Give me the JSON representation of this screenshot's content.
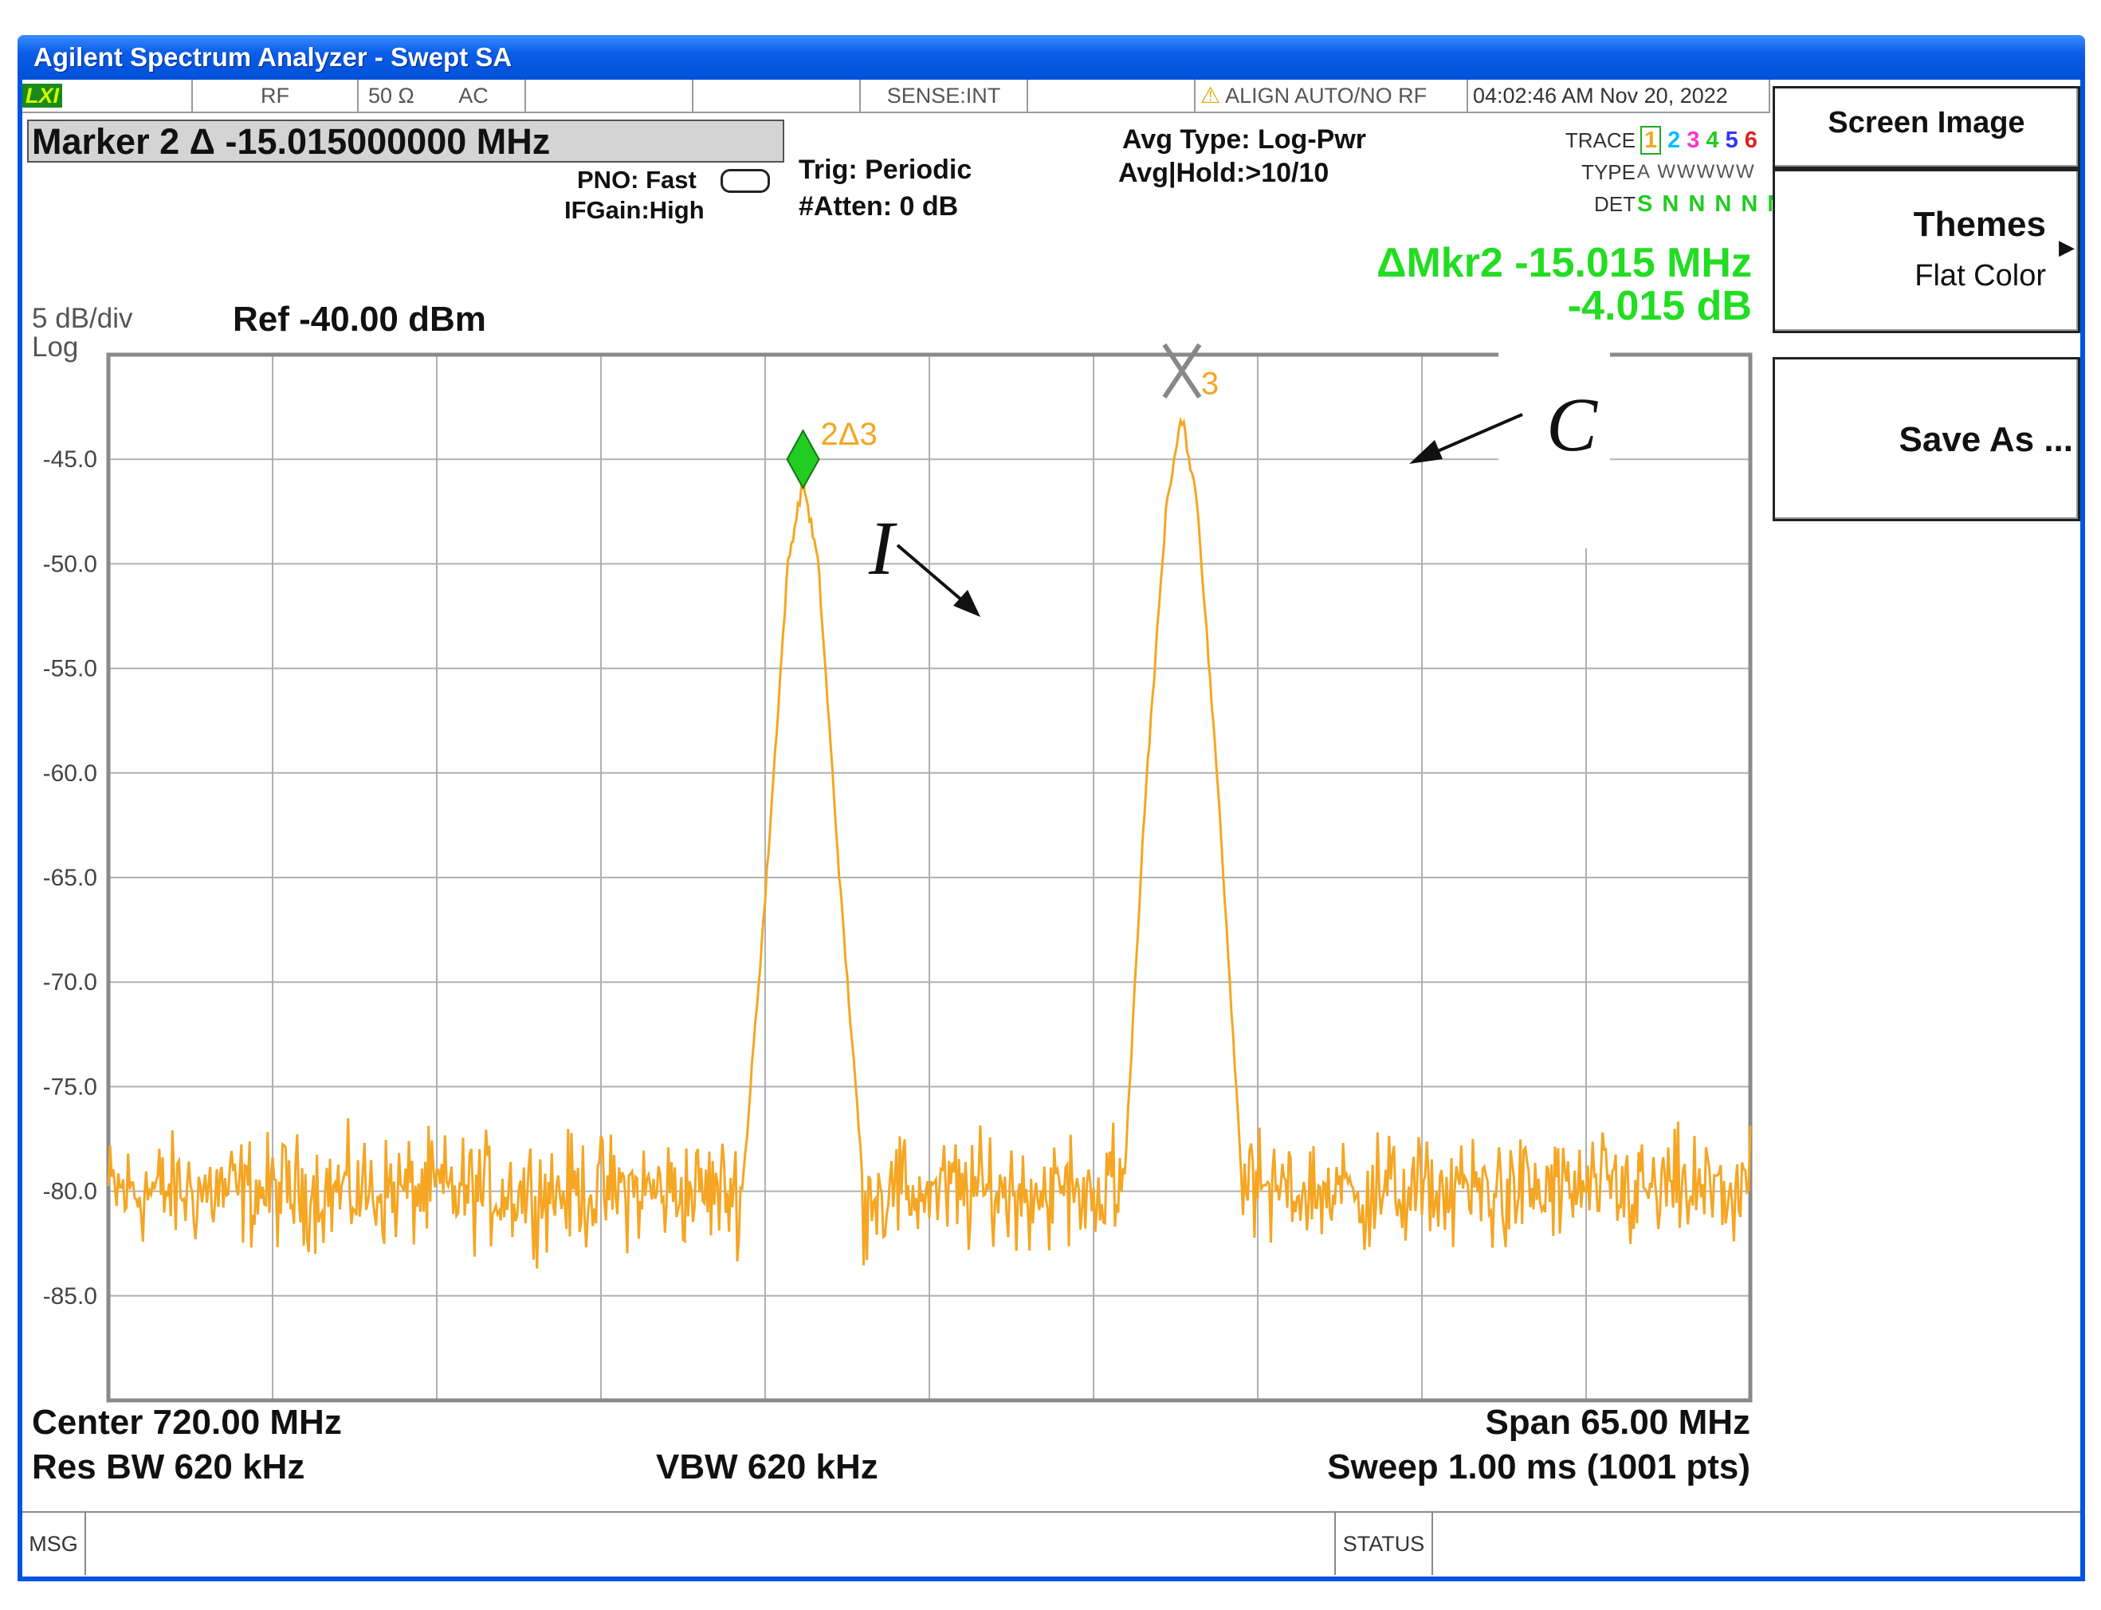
{
  "window": {
    "title": "Agilent Spectrum Analyzer - Swept SA"
  },
  "status_bar": {
    "lxi": "LXI",
    "rf": "RF",
    "impedance": "50 Ω",
    "coupling": "AC",
    "sense": "SENSE:INT",
    "align": "ALIGN AUTO/NO RF",
    "time": "04:02:46 AM",
    "date": "Nov 20, 2022"
  },
  "header": {
    "marker_readout": "Marker 2 Δ  -15.015000000 MHz",
    "pno": "PNO: Fast",
    "ifgain": "IFGain:High",
    "trig": "Trig: Periodic",
    "atten": "#Atten: 0 dB",
    "avg_type": "Avg Type: Log-Pwr",
    "avg_hold": "Avg|Hold:>10/10",
    "trace_label": "TRACE",
    "type_label": "TYPE",
    "det_label": "DET",
    "trace_numbers": [
      "1",
      "2",
      "3",
      "4",
      "5",
      "6"
    ],
    "trace_colors": [
      "#f5a623",
      "#00bfff",
      "#ff33cc",
      "#22cc22",
      "#3333ff",
      "#dd2222"
    ],
    "type_values": "A WWWWW",
    "det_values": "S N N N N N",
    "delta_marker_freq": "ΔMkr2 -15.015 MHz",
    "delta_marker_amp": "-4.015 dB"
  },
  "scale": {
    "per_div": "5 dB/div",
    "mode": "Log",
    "ref": "Ref -40.00 dBm"
  },
  "softkeys": {
    "screen_image": "Screen Image",
    "themes": "Themes",
    "themes_value": "Flat Color",
    "save_as": "Save As ..."
  },
  "footer": {
    "center": "Center 720.00 MHz",
    "span": "Span 65.00 MHz",
    "res_bw": "Res BW 620 kHz",
    "vbw": "VBW 620 kHz",
    "sweep": "Sweep  1.00 ms (1001 pts)"
  },
  "msg_bar": {
    "msg": "MSG",
    "status": "STATUS"
  },
  "annotations": {
    "c_label": "C",
    "i_label": "I"
  },
  "markers": {
    "marker2_label": "2Δ3",
    "marker3_label": "3"
  },
  "colors": {
    "trace": "#f5a623",
    "marker_green": "#22cc22",
    "delta_text": "#22dd22",
    "grid": "#b0b0b0"
  },
  "chart_data": {
    "type": "line",
    "x_units": "MHz",
    "center": 720.0,
    "span": 65.0,
    "xlim": [
      687.5,
      752.5
    ],
    "ylim": [
      -90,
      -40
    ],
    "y_ticks": [
      -45.0,
      -50.0,
      -55.0,
      -60.0,
      -65.0,
      -70.0,
      -75.0,
      -80.0,
      -85.0
    ],
    "y_tick_labels": [
      "-45.0",
      "-50.0",
      "-55.0",
      "-60.0",
      "-65.0",
      "-70.0",
      "-75.0",
      "-80.0",
      "-85.0"
    ],
    "noise_floor": -80.0,
    "grid": true,
    "series": [
      {
        "color": "#f5a623",
        "x": [
          687.5,
          710.0,
          712.6,
          713.5,
          714.4,
          715.0,
          715.6,
          716.5,
          717.4,
          720.0,
          725.0,
          727.7,
          728.5,
          729.4,
          730.0,
          730.6,
          731.5,
          732.4,
          735.0,
          752.5
        ],
        "y": [
          -80,
          -80,
          -80,
          -66,
          -50,
          -46,
          -50,
          -66,
          -80,
          -80,
          -80,
          -80,
          -62,
          -47,
          -43,
          -47,
          -62,
          -80,
          -80,
          -80
        ]
      }
    ],
    "markers": [
      {
        "label": "2Δ3",
        "x": 715.0,
        "y": -45.0
      },
      {
        "label": "3",
        "x": 730.0,
        "y": -41.5
      }
    ]
  }
}
